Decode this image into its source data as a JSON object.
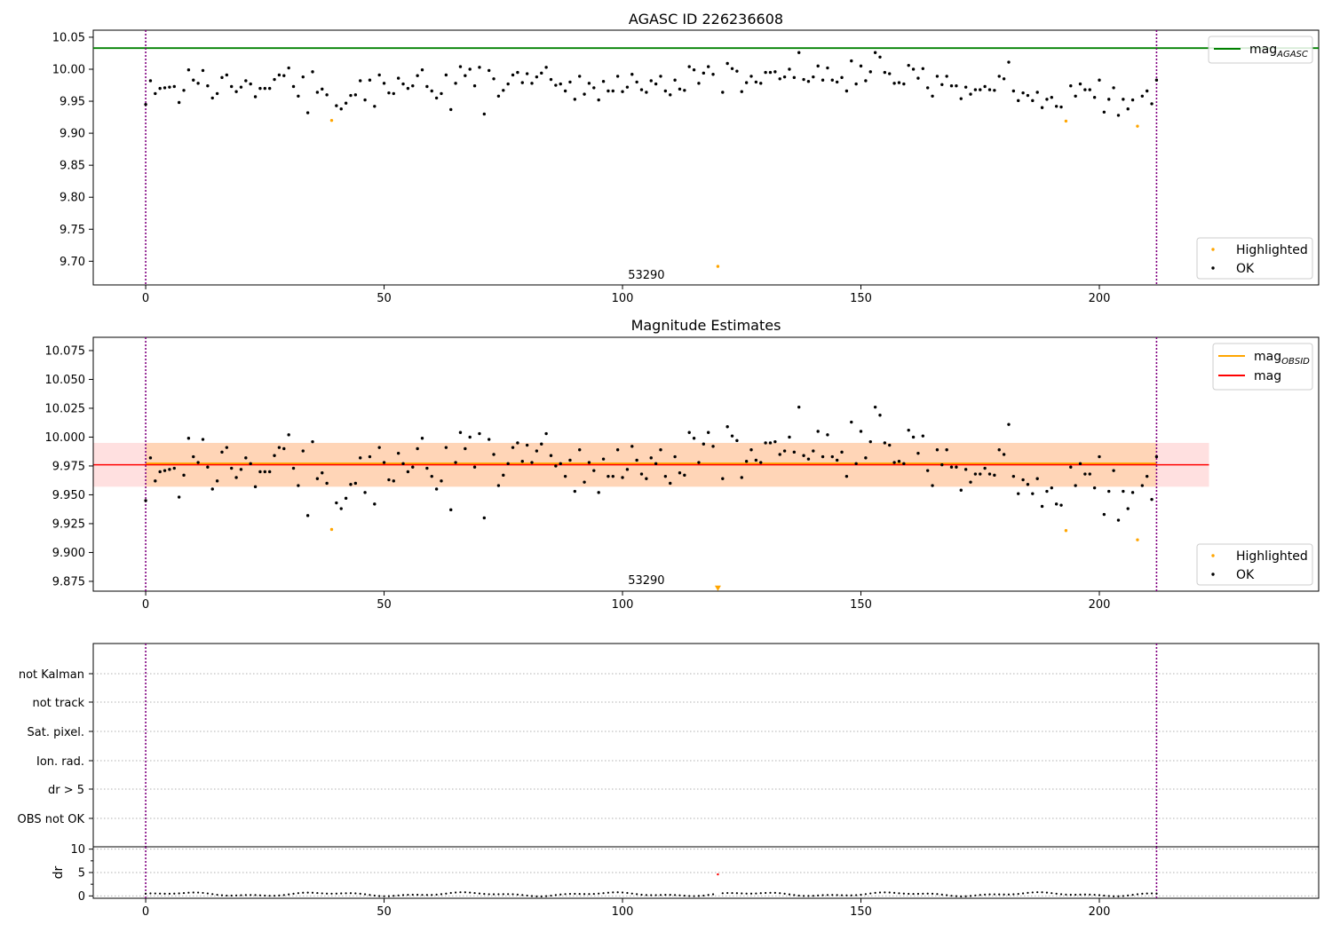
{
  "chart_data": [
    {
      "type": "scatter",
      "title": "AGASC ID 226236608",
      "xlim": [
        -11,
        246
      ],
      "ylim": [
        9.663,
        10.061
      ],
      "xticks": [
        0,
        50,
        100,
        150,
        200
      ],
      "yticks": [
        9.7,
        9.75,
        9.8,
        9.85,
        9.9,
        9.95,
        10.0,
        10.05
      ],
      "ytick_labels": [
        "9.70",
        "9.75",
        "9.80",
        "9.85",
        "9.90",
        "9.95",
        "10.00",
        "10.05"
      ],
      "vlines": [
        0,
        212
      ],
      "hline": {
        "name": "mag_AGASC",
        "y": 10.033,
        "color": "#008000"
      },
      "annotation": {
        "text": "53290",
        "x": 105,
        "y": 9.673
      },
      "legend_lines": [
        {
          "label": "mag",
          "sub": "AGASC",
          "color": "#008000"
        }
      ],
      "legend_points": [
        {
          "label": "Highlighted",
          "color": "#ffa500"
        },
        {
          "label": "OK",
          "color": "#000000"
        }
      ],
      "series": [
        {
          "name": "Highlighted",
          "color": "#ffa500",
          "x": [
            39,
            120,
            193,
            208
          ],
          "y": [
            9.92,
            9.692,
            9.919,
            9.911
          ]
        },
        {
          "name": "OK",
          "color": "#000000",
          "x": [
            0,
            1,
            2,
            3,
            4,
            5,
            6,
            7,
            8,
            9,
            10,
            11,
            12,
            13,
            14,
            15,
            16,
            17,
            18,
            19,
            20,
            21,
            22,
            23,
            24,
            25,
            26,
            27,
            28,
            29,
            30,
            31,
            32,
            33,
            34,
            35,
            36,
            37,
            38,
            40,
            41,
            42,
            43,
            44,
            45,
            46,
            47,
            48,
            49,
            50,
            51,
            52,
            53,
            54,
            55,
            56,
            57,
            58,
            59,
            60,
            61,
            62,
            63,
            64,
            65,
            66,
            67,
            68,
            69,
            70,
            71,
            72,
            73,
            74,
            75,
            76,
            77,
            78,
            79,
            80,
            81,
            82,
            83,
            84,
            85,
            86,
            87,
            88,
            89,
            90,
            91,
            92,
            93,
            94,
            95,
            96,
            97,
            98,
            99,
            100,
            101,
            102,
            103,
            104,
            105,
            106,
            107,
            108,
            109,
            110,
            111,
            112,
            113,
            114,
            115,
            116,
            117,
            118,
            119,
            121,
            122,
            123,
            124,
            125,
            126,
            127,
            128,
            129,
            130,
            131,
            132,
            133,
            134,
            135,
            136,
            137,
            138,
            139,
            140,
            141,
            142,
            143,
            144,
            145,
            146,
            147,
            148,
            149,
            150,
            151,
            152,
            153,
            154,
            155,
            156,
            157,
            158,
            159,
            160,
            161,
            162,
            163,
            164,
            165,
            166,
            167,
            168,
            169,
            170,
            171,
            172,
            173,
            174,
            175,
            176,
            177,
            178,
            179,
            180,
            181,
            182,
            183,
            184,
            185,
            186,
            187,
            188,
            189,
            190,
            191,
            192,
            194,
            195,
            196,
            197,
            198,
            199,
            200,
            201,
            202,
            203,
            204,
            205,
            206,
            207,
            209,
            210,
            211,
            212
          ],
          "y": [
            9.945,
            9.982,
            9.962,
            9.97,
            9.971,
            9.972,
            9.973,
            9.948,
            9.967,
            9.999,
            9.983,
            9.978,
            9.998,
            9.974,
            9.955,
            9.962,
            9.987,
            9.991,
            9.973,
            9.965,
            9.972,
            9.982,
            9.977,
            9.957,
            9.97,
            9.97,
            9.97,
            9.984,
            9.991,
            9.99,
            10.002,
            9.973,
            9.958,
            9.988,
            9.932,
            9.996,
            9.964,
            9.969,
            9.96,
            9.943,
            9.938,
            9.947,
            9.959,
            9.96,
            9.982,
            9.952,
            9.983,
            9.942,
            9.991,
            9.978,
            9.963,
            9.962,
            9.986,
            9.977,
            9.97,
            9.974,
            9.99,
            9.999,
            9.973,
            9.966,
            9.955,
            9.962,
            9.991,
            9.937,
            9.978,
            10.004,
            9.99,
            10.0,
            9.974,
            10.003,
            9.93,
            9.998,
            9.985,
            9.958,
            9.967,
            9.977,
            9.991,
            9.995,
            9.979,
            9.993,
            9.978,
            9.988,
            9.994,
            10.003,
            9.984,
            9.975,
            9.977,
            9.966,
            9.98,
            9.953,
            9.989,
            9.961,
            9.978,
            9.971,
            9.952,
            9.981,
            9.966,
            9.966,
            9.989,
            9.965,
            9.972,
            9.992,
            9.98,
            9.968,
            9.964,
            9.982,
            9.977,
            9.989,
            9.966,
            9.96,
            9.983,
            9.969,
            9.967,
            10.004,
            9.999,
            9.978,
            9.994,
            10.004,
            9.992,
            9.964,
            10.009,
            10.001,
            9.997,
            9.965,
            9.979,
            9.989,
            9.98,
            9.978,
            9.995,
            9.995,
            9.996,
            9.985,
            9.988,
            10.0,
            9.987,
            10.026,
            9.984,
            9.981,
            9.988,
            10.005,
            9.983,
            10.002,
            9.983,
            9.98,
            9.987,
            9.966,
            10.013,
            9.977,
            10.005,
            9.982,
            9.996,
            10.026,
            10.019,
            9.995,
            9.993,
            9.978,
            9.979,
            9.977,
            10.006,
            10.0,
            9.986,
            10.001,
            9.971,
            9.958,
            9.989,
            9.976,
            9.989,
            9.974,
            9.974,
            9.954,
            9.972,
            9.961,
            9.968,
            9.968,
            9.973,
            9.968,
            9.967,
            9.989,
            9.985,
            10.011,
            9.966,
            9.951,
            9.963,
            9.959,
            9.951,
            9.964,
            9.94,
            9.953,
            9.956,
            9.942,
            9.941,
            9.974,
            9.958,
            9.977,
            9.968,
            9.968,
            9.956,
            9.983,
            9.933,
            9.953,
            9.971,
            9.928,
            9.953,
            9.938,
            9.952,
            9.958,
            9.966,
            9.946,
            9.983
          ]
        }
      ]
    },
    {
      "type": "scatter",
      "title": "Magnitude Estimates",
      "xlim": [
        -11,
        246
      ],
      "ylim": [
        9.8665,
        10.0865
      ],
      "xticks": [
        0,
        50,
        100,
        150,
        200
      ],
      "yticks": [
        9.875,
        9.9,
        9.925,
        9.95,
        9.975,
        10.0,
        10.025,
        10.05,
        10.075
      ],
      "ytick_labels": [
        "9.875",
        "9.900",
        "9.925",
        "9.950",
        "9.975",
        "10.000",
        "10.025",
        "10.050",
        "10.075"
      ],
      "vlines": [
        0,
        212
      ],
      "bands": [
        {
          "x0": -11,
          "x1": 223,
          "y0": 9.957,
          "y1": 9.995,
          "color": "#ff0000",
          "alpha": 0.12
        },
        {
          "x0": 0,
          "x1": 212,
          "y0": 9.957,
          "y1": 9.995,
          "color": "#ffa500",
          "alpha": 0.18
        }
      ],
      "hlines": [
        {
          "name": "mag_OBSID",
          "x0": 0,
          "x1": 212,
          "y": 9.977,
          "color": "#ffa500",
          "width": 2.5
        },
        {
          "name": "mag",
          "x0": -11,
          "x1": 223,
          "y": 9.976,
          "color": "#ff0000",
          "width": 1.5
        }
      ],
      "annotation": {
        "text": "53290",
        "x": 105,
        "y": 9.8725
      },
      "offscale_marker": {
        "x": 120,
        "y": 9.869,
        "color": "#ffa500"
      },
      "legend_lines": [
        {
          "label": "mag",
          "sub": "OBSID",
          "color": "#ffa500"
        },
        {
          "label": "mag",
          "sub": "",
          "color": "#ff0000"
        }
      ],
      "legend_points": [
        {
          "label": "Highlighted",
          "color": "#ffa500"
        },
        {
          "label": "OK",
          "color": "#000000"
        }
      ],
      "reuse_series_from": 0
    },
    {
      "type": "scatter",
      "title": "",
      "categories": [
        "not Kalman",
        "not track",
        "Sat. pixel.",
        "Ion. rad.",
        "dr > 5",
        "OBS not OK"
      ],
      "vlines": [
        0,
        212
      ],
      "flags": []
    },
    {
      "type": "scatter",
      "title": "",
      "ylabel": "dr",
      "xlim": [
        -11,
        246
      ],
      "ylim": [
        -0.5,
        10.5
      ],
      "xticks": [
        0,
        50,
        100,
        150,
        200
      ],
      "yticks": [
        0,
        5,
        10
      ],
      "ytick_labels": [
        "0",
        "5",
        "10"
      ],
      "vlines": [
        0,
        212
      ],
      "highlight": {
        "x": 120,
        "y": 4.6,
        "color": "#ff0000"
      }
    }
  ]
}
